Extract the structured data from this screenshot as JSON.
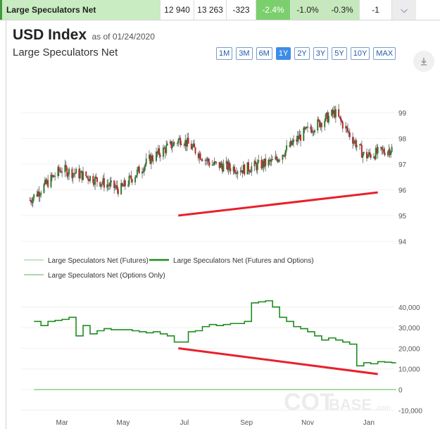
{
  "topbar": {
    "label": "Large Speculators Net",
    "values": [
      "12 940",
      "13 263",
      "-323"
    ],
    "pcts": [
      "-2.4%",
      "-1.0%",
      "-0.3%"
    ],
    "last": "-1",
    "chevron": "chevron-down-icon"
  },
  "header": {
    "title": "USD Index",
    "as_of": "as of 01/24/2020",
    "subtitle": "Large Speculators Net"
  },
  "ranges": [
    "1M",
    "3M",
    "6M",
    "1Y",
    "2Y",
    "3Y",
    "5Y",
    "10Y",
    "MAX"
  ],
  "active_range": "1Y",
  "download_icon": "download-icon",
  "watermark": {
    "main": "COT",
    "accent": "BASE",
    "suffix": ".com"
  },
  "colors": {
    "up": "#2e7d2e",
    "down": "#c0272d",
    "net": "#1f8c1f",
    "futures": "#8bc98b",
    "options": "#59b359",
    "trendline": "#e8202a"
  },
  "chart_data": [
    {
      "type": "candlestick",
      "title": "USD Index",
      "subtitle": "Large Speculators Net",
      "y_ticks": [
        94,
        95,
        96,
        97,
        98,
        99
      ],
      "ylim": [
        94,
        99.5
      ],
      "x": [
        "2019-01-28",
        "2019-02-28",
        "2019-03-28",
        "2019-04-28",
        "2019-05-28",
        "2019-06-28",
        "2019-07-28",
        "2019-08-28",
        "2019-09-28",
        "2019-10-28",
        "2019-11-28",
        "2019-12-28",
        "2020-01-24"
      ],
      "close": [
        95.6,
        96.8,
        96.5,
        96.0,
        97.2,
        98.0,
        97.0,
        96.8,
        97.1,
        98.2,
        99.0,
        97.3,
        97.6
      ],
      "annotations": [
        {
          "type": "trendline",
          "from": [
            "2019-06-25",
            95.0
          ],
          "to": [
            "2020-01-10",
            95.9
          ]
        }
      ]
    },
    {
      "type": "line",
      "legend": [
        "Large Speculators Net (Futures)",
        "Large Speculators Net (Futures and Options)",
        "Large Speculators Net (Options Only)"
      ],
      "y_ticks": [
        "40,000",
        "30,000",
        "20,000",
        "10,000",
        "0",
        "-10,000"
      ],
      "x_ticks": [
        "Mar",
        "May",
        "Jul",
        "Sep",
        "Nov",
        "Jan"
      ],
      "ylim": [
        -10000,
        45000
      ],
      "series": [
        {
          "name": "Large Speculators Net (Futures and Options)",
          "x": [
            "2019-02-01",
            "2019-02-08",
            "2019-02-15",
            "2019-02-22",
            "2019-03-01",
            "2019-03-08",
            "2019-03-15",
            "2019-03-22",
            "2019-03-29",
            "2019-04-05",
            "2019-04-12",
            "2019-04-19",
            "2019-04-26",
            "2019-05-03",
            "2019-05-10",
            "2019-05-17",
            "2019-05-24",
            "2019-05-31",
            "2019-06-07",
            "2019-06-14",
            "2019-06-21",
            "2019-06-28",
            "2019-07-05",
            "2019-07-12",
            "2019-07-19",
            "2019-07-26",
            "2019-08-02",
            "2019-08-09",
            "2019-08-16",
            "2019-08-23",
            "2019-08-30",
            "2019-09-06",
            "2019-09-13",
            "2019-09-20",
            "2019-09-27",
            "2019-10-04",
            "2019-10-11",
            "2019-10-18",
            "2019-10-25",
            "2019-11-01",
            "2019-11-08",
            "2019-11-15",
            "2019-11-22",
            "2019-11-29",
            "2019-12-06",
            "2019-12-13",
            "2019-12-20",
            "2019-12-27",
            "2020-01-03",
            "2020-01-10",
            "2020-01-17",
            "2020-01-24"
          ],
          "values": [
            33000,
            31000,
            33000,
            33500,
            34000,
            35000,
            26000,
            31000,
            27000,
            28500,
            29500,
            29000,
            29000,
            29000,
            28500,
            28000,
            27500,
            28000,
            27000,
            26000,
            23000,
            23000,
            28000,
            28500,
            30500,
            31500,
            31000,
            31500,
            32000,
            32000,
            33000,
            42000,
            42500,
            43000,
            40000,
            35000,
            33000,
            30500,
            29500,
            28000,
            26000,
            24000,
            25000,
            24000,
            23000,
            22000,
            11500,
            13000,
            12500,
            13500,
            13263,
            12940
          ]
        },
        {
          "name": "Large Speculators Net (Futures)",
          "x": [
            "2019-02-01",
            "2020-01-24"
          ],
          "values": [
            0,
            0
          ]
        },
        {
          "name": "Large Speculators Net (Options Only)",
          "x": [
            "2019-02-01",
            "2020-01-24"
          ],
          "values": [
            0,
            0
          ]
        }
      ],
      "annotations": [
        {
          "type": "trendline",
          "from": [
            "2019-06-25",
            20000
          ],
          "to": [
            "2020-01-10",
            7500
          ]
        }
      ]
    }
  ]
}
